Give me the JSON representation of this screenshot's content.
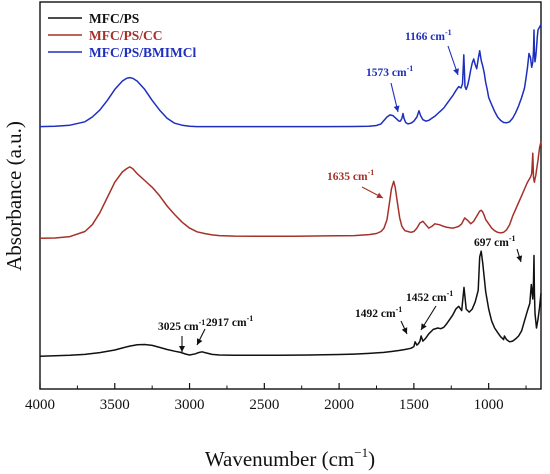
{
  "chart_data": {
    "type": "line",
    "title": "",
    "xlabel": "Wavenumber (cm",
    "xlabel_sup": "−1",
    "xlabel_end": ")",
    "ylabel": "Absorbance (a.u.)",
    "x_reversed": true,
    "xlim": [
      4000,
      650
    ],
    "ylim": [
      0,
      10
    ],
    "x_ticks": [
      4000,
      3500,
      3000,
      2500,
      2000,
      1500,
      1000
    ],
    "y_ticks": [],
    "grid": false,
    "legend_position": "top-left",
    "series": [
      {
        "name": "MFC/PS",
        "color": "#111111",
        "x": [
          4000,
          3900,
          3800,
          3700,
          3600,
          3500,
          3450,
          3400,
          3350,
          3300,
          3250,
          3200,
          3150,
          3100,
          3060,
          3025,
          3000,
          2960,
          2940,
          2917,
          2890,
          2850,
          2800,
          2700,
          2600,
          2500,
          2400,
          2300,
          2200,
          2100,
          2000,
          1900,
          1800,
          1700,
          1650,
          1600,
          1560,
          1520,
          1500,
          1492,
          1480,
          1470,
          1460,
          1452,
          1440,
          1420,
          1400,
          1370,
          1340,
          1320,
          1300,
          1280,
          1260,
          1240,
          1220,
          1200,
          1180,
          1165,
          1150,
          1130,
          1110,
          1090,
          1070,
          1060,
          1050,
          1040,
          1030,
          1020,
          1000,
          980,
          960,
          940,
          920,
          900,
          895,
          880,
          860,
          840,
          820,
          800,
          780,
          760,
          740,
          725,
          715,
          705,
          700,
          697,
          694,
          690,
          680,
          670,
          660,
          650
        ],
        "y": [
          0.05,
          0.08,
          0.12,
          0.18,
          0.3,
          0.48,
          0.62,
          0.75,
          0.84,
          0.86,
          0.8,
          0.66,
          0.52,
          0.4,
          0.32,
          0.2,
          0.14,
          0.22,
          0.3,
          0.36,
          0.28,
          0.18,
          0.14,
          0.12,
          0.12,
          0.12,
          0.12,
          0.13,
          0.14,
          0.15,
          0.17,
          0.2,
          0.25,
          0.32,
          0.38,
          0.45,
          0.52,
          0.6,
          0.72,
          1.05,
          0.82,
          0.92,
          1.08,
          1.45,
          1.1,
          1.3,
          1.6,
          1.9,
          2.0,
          1.95,
          2.05,
          2.3,
          2.6,
          2.9,
          3.3,
          3.5,
          3.2,
          4.8,
          3.3,
          3.1,
          3.3,
          3.8,
          4.6,
          6.9,
          7.3,
          6.5,
          5.5,
          4.5,
          3.3,
          2.5,
          2.0,
          1.7,
          1.4,
          1.2,
          1.45,
          1.2,
          1.05,
          1.1,
          1.25,
          1.45,
          1.8,
          2.5,
          3.2,
          3.7,
          5.0,
          4.0,
          5.2,
          7.0,
          4.5,
          3.0,
          2.0,
          2.6,
          3.4,
          4.4
        ]
      },
      {
        "name": "MFC/PS/CC",
        "color": "#a5322a",
        "x": [
          4000,
          3900,
          3800,
          3700,
          3650,
          3600,
          3550,
          3500,
          3450,
          3420,
          3400,
          3380,
          3350,
          3300,
          3250,
          3200,
          3150,
          3100,
          3050,
          3000,
          2950,
          2900,
          2850,
          2800,
          2700,
          2500,
          2300,
          2100,
          1900,
          1800,
          1750,
          1720,
          1700,
          1680,
          1660,
          1650,
          1640,
          1635,
          1625,
          1610,
          1595,
          1580,
          1560,
          1540,
          1520,
          1500,
          1480,
          1460,
          1440,
          1420,
          1400,
          1380,
          1360,
          1330,
          1300,
          1280,
          1260,
          1240,
          1220,
          1200,
          1180,
          1160,
          1140,
          1120,
          1100,
          1080,
          1060,
          1050,
          1040,
          1030,
          1020,
          1000,
          980,
          960,
          940,
          920,
          900,
          880,
          860,
          840,
          820,
          800,
          780,
          760,
          740,
          720,
          712,
          705,
          700,
          697,
          694,
          690,
          685,
          680,
          670,
          660,
          650
        ],
        "y": [
          0.1,
          0.12,
          0.2,
          0.5,
          0.9,
          1.6,
          2.5,
          3.4,
          4.0,
          4.2,
          4.3,
          4.2,
          3.9,
          3.5,
          3.1,
          2.6,
          2.0,
          1.5,
          1.05,
          0.7,
          0.48,
          0.38,
          0.3,
          0.26,
          0.23,
          0.22,
          0.22,
          0.24,
          0.26,
          0.32,
          0.38,
          0.5,
          0.7,
          1.2,
          2.4,
          3.0,
          3.3,
          3.45,
          3.1,
          2.2,
          1.3,
          0.8,
          0.55,
          0.5,
          0.45,
          0.5,
          0.7,
          1.0,
          1.1,
          0.9,
          0.7,
          0.8,
          0.95,
          0.9,
          0.8,
          0.75,
          0.72,
          0.7,
          0.75,
          0.8,
          0.95,
          1.3,
          1.15,
          0.95,
          1.1,
          1.4,
          1.7,
          1.75,
          1.65,
          1.45,
          1.2,
          0.95,
          0.7,
          0.55,
          0.45,
          0.42,
          0.45,
          0.6,
          0.9,
          1.4,
          1.8,
          2.2,
          2.6,
          3.0,
          3.4,
          3.7,
          3.9,
          5.1,
          3.7,
          3.5,
          3.4,
          3.6,
          3.8,
          4.1,
          4.7,
          5.4,
          5.8
        ]
      },
      {
        "name": "MFC/PS/BMIMCl",
        "color": "#1e2fbe",
        "x": [
          4000,
          3900,
          3800,
          3700,
          3650,
          3600,
          3550,
          3500,
          3450,
          3420,
          3400,
          3380,
          3350,
          3300,
          3250,
          3200,
          3150,
          3100,
          3050,
          3000,
          2950,
          2900,
          2850,
          2800,
          2700,
          2500,
          2300,
          2100,
          1900,
          1800,
          1750,
          1720,
          1700,
          1680,
          1660,
          1640,
          1620,
          1600,
          1590,
          1580,
          1573,
          1566,
          1555,
          1540,
          1520,
          1500,
          1480,
          1466,
          1455,
          1440,
          1420,
          1400,
          1380,
          1360,
          1340,
          1320,
          1300,
          1280,
          1260,
          1240,
          1220,
          1200,
          1185,
          1175,
          1166,
          1158,
          1150,
          1140,
          1130,
          1120,
          1110,
          1100,
          1090,
          1080,
          1070,
          1060,
          1050,
          1040,
          1030,
          1020,
          1010,
          1000,
          980,
          960,
          940,
          920,
          900,
          880,
          860,
          840,
          820,
          800,
          780,
          760,
          750,
          740,
          730,
          720,
          712,
          705,
          700,
          697,
          694,
          690,
          685,
          680,
          675,
          670,
          660,
          650
        ],
        "y": [
          0.1,
          0.12,
          0.2,
          0.45,
          0.8,
          1.3,
          2.0,
          2.8,
          3.4,
          3.6,
          3.65,
          3.6,
          3.4,
          2.8,
          2.0,
          1.3,
          0.7,
          0.35,
          0.2,
          0.12,
          0.1,
          0.1,
          0.1,
          0.1,
          0.1,
          0.1,
          0.1,
          0.1,
          0.11,
          0.13,
          0.18,
          0.3,
          0.55,
          0.8,
          0.95,
          0.9,
          0.7,
          0.5,
          0.5,
          0.7,
          1.05,
          0.7,
          0.4,
          0.3,
          0.35,
          0.5,
          0.8,
          1.25,
          0.9,
          0.6,
          0.5,
          0.55,
          0.7,
          0.85,
          1.05,
          1.25,
          1.45,
          1.75,
          2.05,
          2.35,
          2.7,
          3.0,
          2.9,
          3.2,
          5.3,
          3.0,
          2.8,
          3.1,
          3.6,
          4.2,
          4.7,
          5.0,
          4.6,
          4.3,
          5.0,
          5.6,
          4.9,
          4.5,
          4.0,
          3.3,
          2.8,
          2.2,
          1.7,
          1.2,
          0.8,
          0.55,
          0.4,
          0.38,
          0.45,
          0.7,
          1.1,
          1.6,
          2.2,
          2.9,
          3.6,
          4.4,
          5.4,
          5.1,
          4.4,
          4.8,
          5.6,
          7.1,
          5.5,
          4.8,
          5.2,
          5.8,
          6.6,
          7.1,
          7.3,
          7.5
        ]
      }
    ],
    "annotations": [
      {
        "text": "3025 cm",
        "sup": "-1",
        "series": 0,
        "x": 3025,
        "color": "#111111"
      },
      {
        "text": "2917 cm",
        "sup": "-1",
        "series": 0,
        "x": 2917,
        "color": "#111111"
      },
      {
        "text": "1492 cm",
        "sup": "-1",
        "series": 0,
        "x": 1492,
        "color": "#111111"
      },
      {
        "text": "1452 cm",
        "sup": "-1",
        "series": 0,
        "x": 1452,
        "color": "#111111"
      },
      {
        "text": "697 cm",
        "sup": "-1",
        "series": 0,
        "x": 697,
        "color": "#111111"
      },
      {
        "text": "1635 cm",
        "sup": "-1",
        "series": 1,
        "x": 1635,
        "color": "#a5322a"
      },
      {
        "text": "1573 cm",
        "sup": "-1",
        "series": 2,
        "x": 1573,
        "color": "#1e2fbe"
      },
      {
        "text": "1166 cm",
        "sup": "-1",
        "series": 2,
        "x": 1166,
        "color": "#1e2fbe"
      }
    ]
  }
}
